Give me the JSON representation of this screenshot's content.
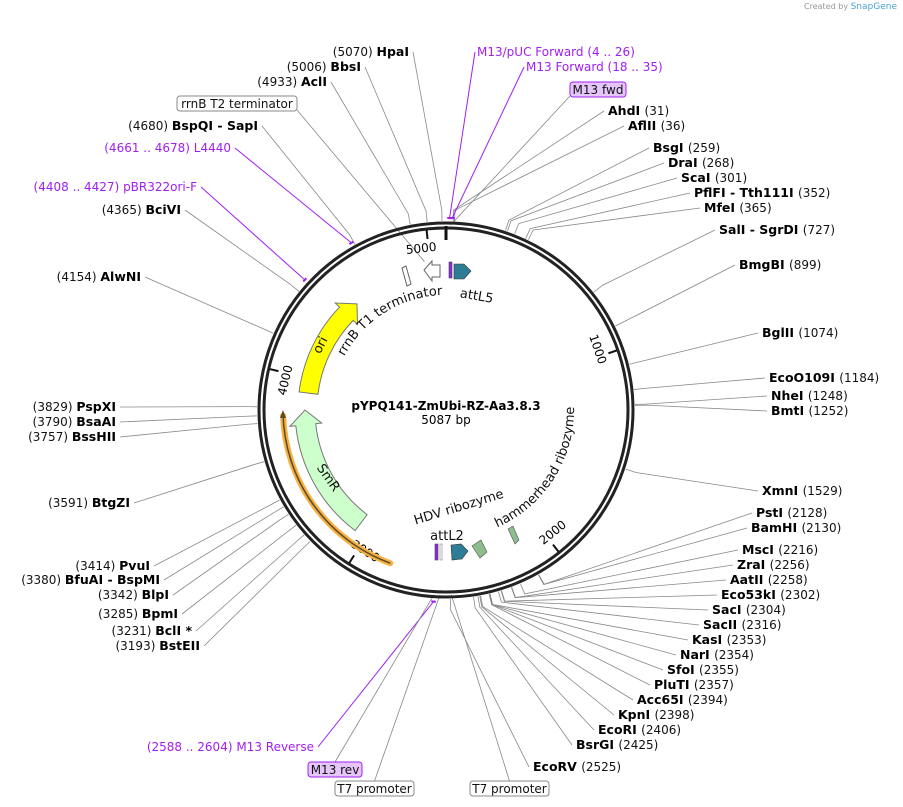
{
  "credit": {
    "prefix": "Created by",
    "brand": "SnapGene"
  },
  "plasmid": {
    "name": "pYPQ141-ZmUbi-RZ-Aa3.8.3",
    "length_label": "5087 bp",
    "length": 5087
  },
  "ticks": [
    "1000",
    "2000",
    "3000",
    "4000",
    "5000"
  ],
  "enzymes": [
    {
      "name": "HpaI",
      "pos": 5070
    },
    {
      "name": "BbsI",
      "pos": 5006
    },
    {
      "name": "AclI",
      "pos": 4933
    },
    {
      "name": "BspQI - SapI",
      "pos": 4680
    },
    {
      "name": "BciVI",
      "pos": 4365
    },
    {
      "name": "AlwNI",
      "pos": 4154
    },
    {
      "name": "PspXI",
      "pos": 3829
    },
    {
      "name": "BsaAI",
      "pos": 3790
    },
    {
      "name": "BssHII",
      "pos": 3757
    },
    {
      "name": "BtgZI",
      "pos": 3591
    },
    {
      "name": "PvuI",
      "pos": 3414
    },
    {
      "name": "BfuAI - BspMI",
      "pos": 3380
    },
    {
      "name": "BlpI",
      "pos": 3342
    },
    {
      "name": "BpmI",
      "pos": 3285
    },
    {
      "name": "BclI *",
      "pos": 3231
    },
    {
      "name": "BstEII",
      "pos": 3193
    },
    {
      "name": "AhdI",
      "pos": 31
    },
    {
      "name": "AflII",
      "pos": 36
    },
    {
      "name": "BsgI",
      "pos": 259
    },
    {
      "name": "DraI",
      "pos": 268
    },
    {
      "name": "ScaI",
      "pos": 301
    },
    {
      "name": "PflFI - Tth111I",
      "pos": 352
    },
    {
      "name": "MfeI",
      "pos": 365
    },
    {
      "name": "SalI - SgrDI",
      "pos": 727
    },
    {
      "name": "BmgBI",
      "pos": 899
    },
    {
      "name": "BglII",
      "pos": 1074
    },
    {
      "name": "EcoO109I",
      "pos": 1184
    },
    {
      "name": "NheI",
      "pos": 1248
    },
    {
      "name": "BmtI",
      "pos": 1252
    },
    {
      "name": "XmnI",
      "pos": 1529
    },
    {
      "name": "PstI",
      "pos": 2128
    },
    {
      "name": "BamHI",
      "pos": 2130
    },
    {
      "name": "MscI",
      "pos": 2216
    },
    {
      "name": "ZraI",
      "pos": 2256
    },
    {
      "name": "AatII",
      "pos": 2258
    },
    {
      "name": "Eco53kI",
      "pos": 2302
    },
    {
      "name": "SacI",
      "pos": 2304
    },
    {
      "name": "SacII",
      "pos": 2316
    },
    {
      "name": "KasI",
      "pos": 2353
    },
    {
      "name": "NarI",
      "pos": 2354
    },
    {
      "name": "SfoI",
      "pos": 2355
    },
    {
      "name": "PluTI",
      "pos": 2357
    },
    {
      "name": "Acc65I",
      "pos": 2394
    },
    {
      "name": "KpnI",
      "pos": 2398
    },
    {
      "name": "EcoRI",
      "pos": 2406
    },
    {
      "name": "BsrGI",
      "pos": 2425
    },
    {
      "name": "EcoRV",
      "pos": 2525
    }
  ],
  "primers": [
    {
      "name": "M13/pUC Forward",
      "range": "(4 .. 26)",
      "pos": 15
    },
    {
      "name": "M13 Forward",
      "range": "(18 .. 35)",
      "pos": 26
    },
    {
      "name": "L4440",
      "range": "(4661 .. 4678)",
      "pos": 4670
    },
    {
      "name": "pBR322ori-F",
      "range": "(4408 .. 4427)",
      "pos": 4418
    },
    {
      "name": "M13 Reverse",
      "range": "(2588 .. 2604)",
      "pos": 2596
    }
  ],
  "boxed_features": [
    {
      "name": "M13 fwd",
      "style": "primer",
      "pos": 20
    },
    {
      "name": "rrnB T2 terminator",
      "style": "feature",
      "pos": 4970
    },
    {
      "name": "M13 rev",
      "style": "primer",
      "pos": 2596
    },
    {
      "name": "T7 promoter",
      "style": "feature",
      "pos": 2570
    },
    {
      "name": "T7 promoter",
      "style": "feature",
      "pos": 2520
    }
  ],
  "features": {
    "rrnB_t1": "rrnB T1 terminator",
    "attL5": "attL5",
    "ori": "ori",
    "smr": "SmR",
    "hammerhead": "hammerhead ribozyme",
    "hdv": "HDV ribozyme",
    "attL2": "attL2"
  },
  "colors": {
    "primer": "#a020f0",
    "ori": "#ffff00",
    "smr": "#ccffcc",
    "att": "#2e7d96",
    "ribozyme": "#8fbc8f",
    "orange": "#f5b041"
  }
}
